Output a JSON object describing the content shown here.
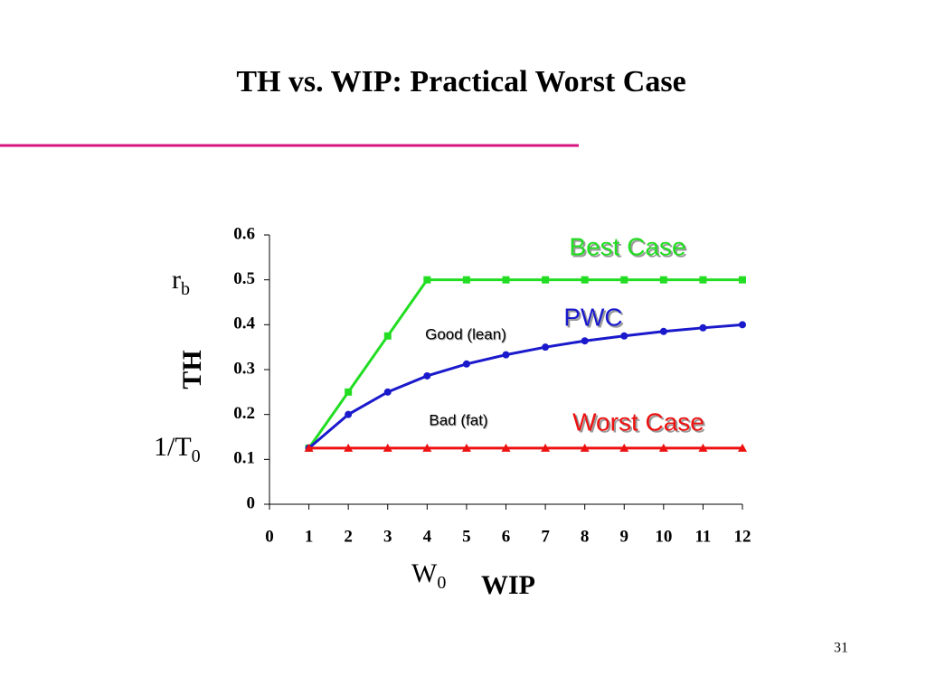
{
  "chart_data": {
    "type": "line",
    "title": "TH vs. WIP: Practical Worst Case",
    "x_label": "WIP",
    "y_label": "TH",
    "x": [
      1,
      2,
      3,
      4,
      5,
      6,
      7,
      8,
      9,
      10,
      11,
      12
    ],
    "series": [
      {
        "name": "Best Case",
        "color": "#22dd22",
        "marker": "square",
        "values": [
          0.125,
          0.25,
          0.375,
          0.5,
          0.5,
          0.5,
          0.5,
          0.5,
          0.5,
          0.5,
          0.5,
          0.5
        ]
      },
      {
        "name": "PWC",
        "color": "#1a1acc",
        "marker": "circle",
        "values": [
          0.125,
          0.2,
          0.25,
          0.286,
          0.3125,
          0.333,
          0.35,
          0.364,
          0.375,
          0.385,
          0.393,
          0.4
        ]
      },
      {
        "name": "Worst Case",
        "color": "#ee1111",
        "marker": "triangle",
        "values": [
          0.125,
          0.125,
          0.125,
          0.125,
          0.125,
          0.125,
          0.125,
          0.125,
          0.125,
          0.125,
          0.125,
          0.125
        ]
      }
    ],
    "xlim": [
      0,
      12
    ],
    "xticks": [
      0,
      1,
      2,
      3,
      4,
      5,
      6,
      7,
      8,
      9,
      10,
      11,
      12
    ],
    "ylim": [
      0,
      0.6
    ],
    "yticks": [
      0,
      0.1,
      0.2,
      0.3,
      0.4,
      0.5,
      0.6
    ],
    "grid": false,
    "annotations": [
      "Good (lean)",
      "Bad (fat)"
    ],
    "axis_notes": [
      {
        "text": "r",
        "sub": "b"
      },
      {
        "text": "1/T",
        "sub": "0"
      },
      {
        "text": "W",
        "sub": "0"
      }
    ]
  },
  "page_number": "31"
}
